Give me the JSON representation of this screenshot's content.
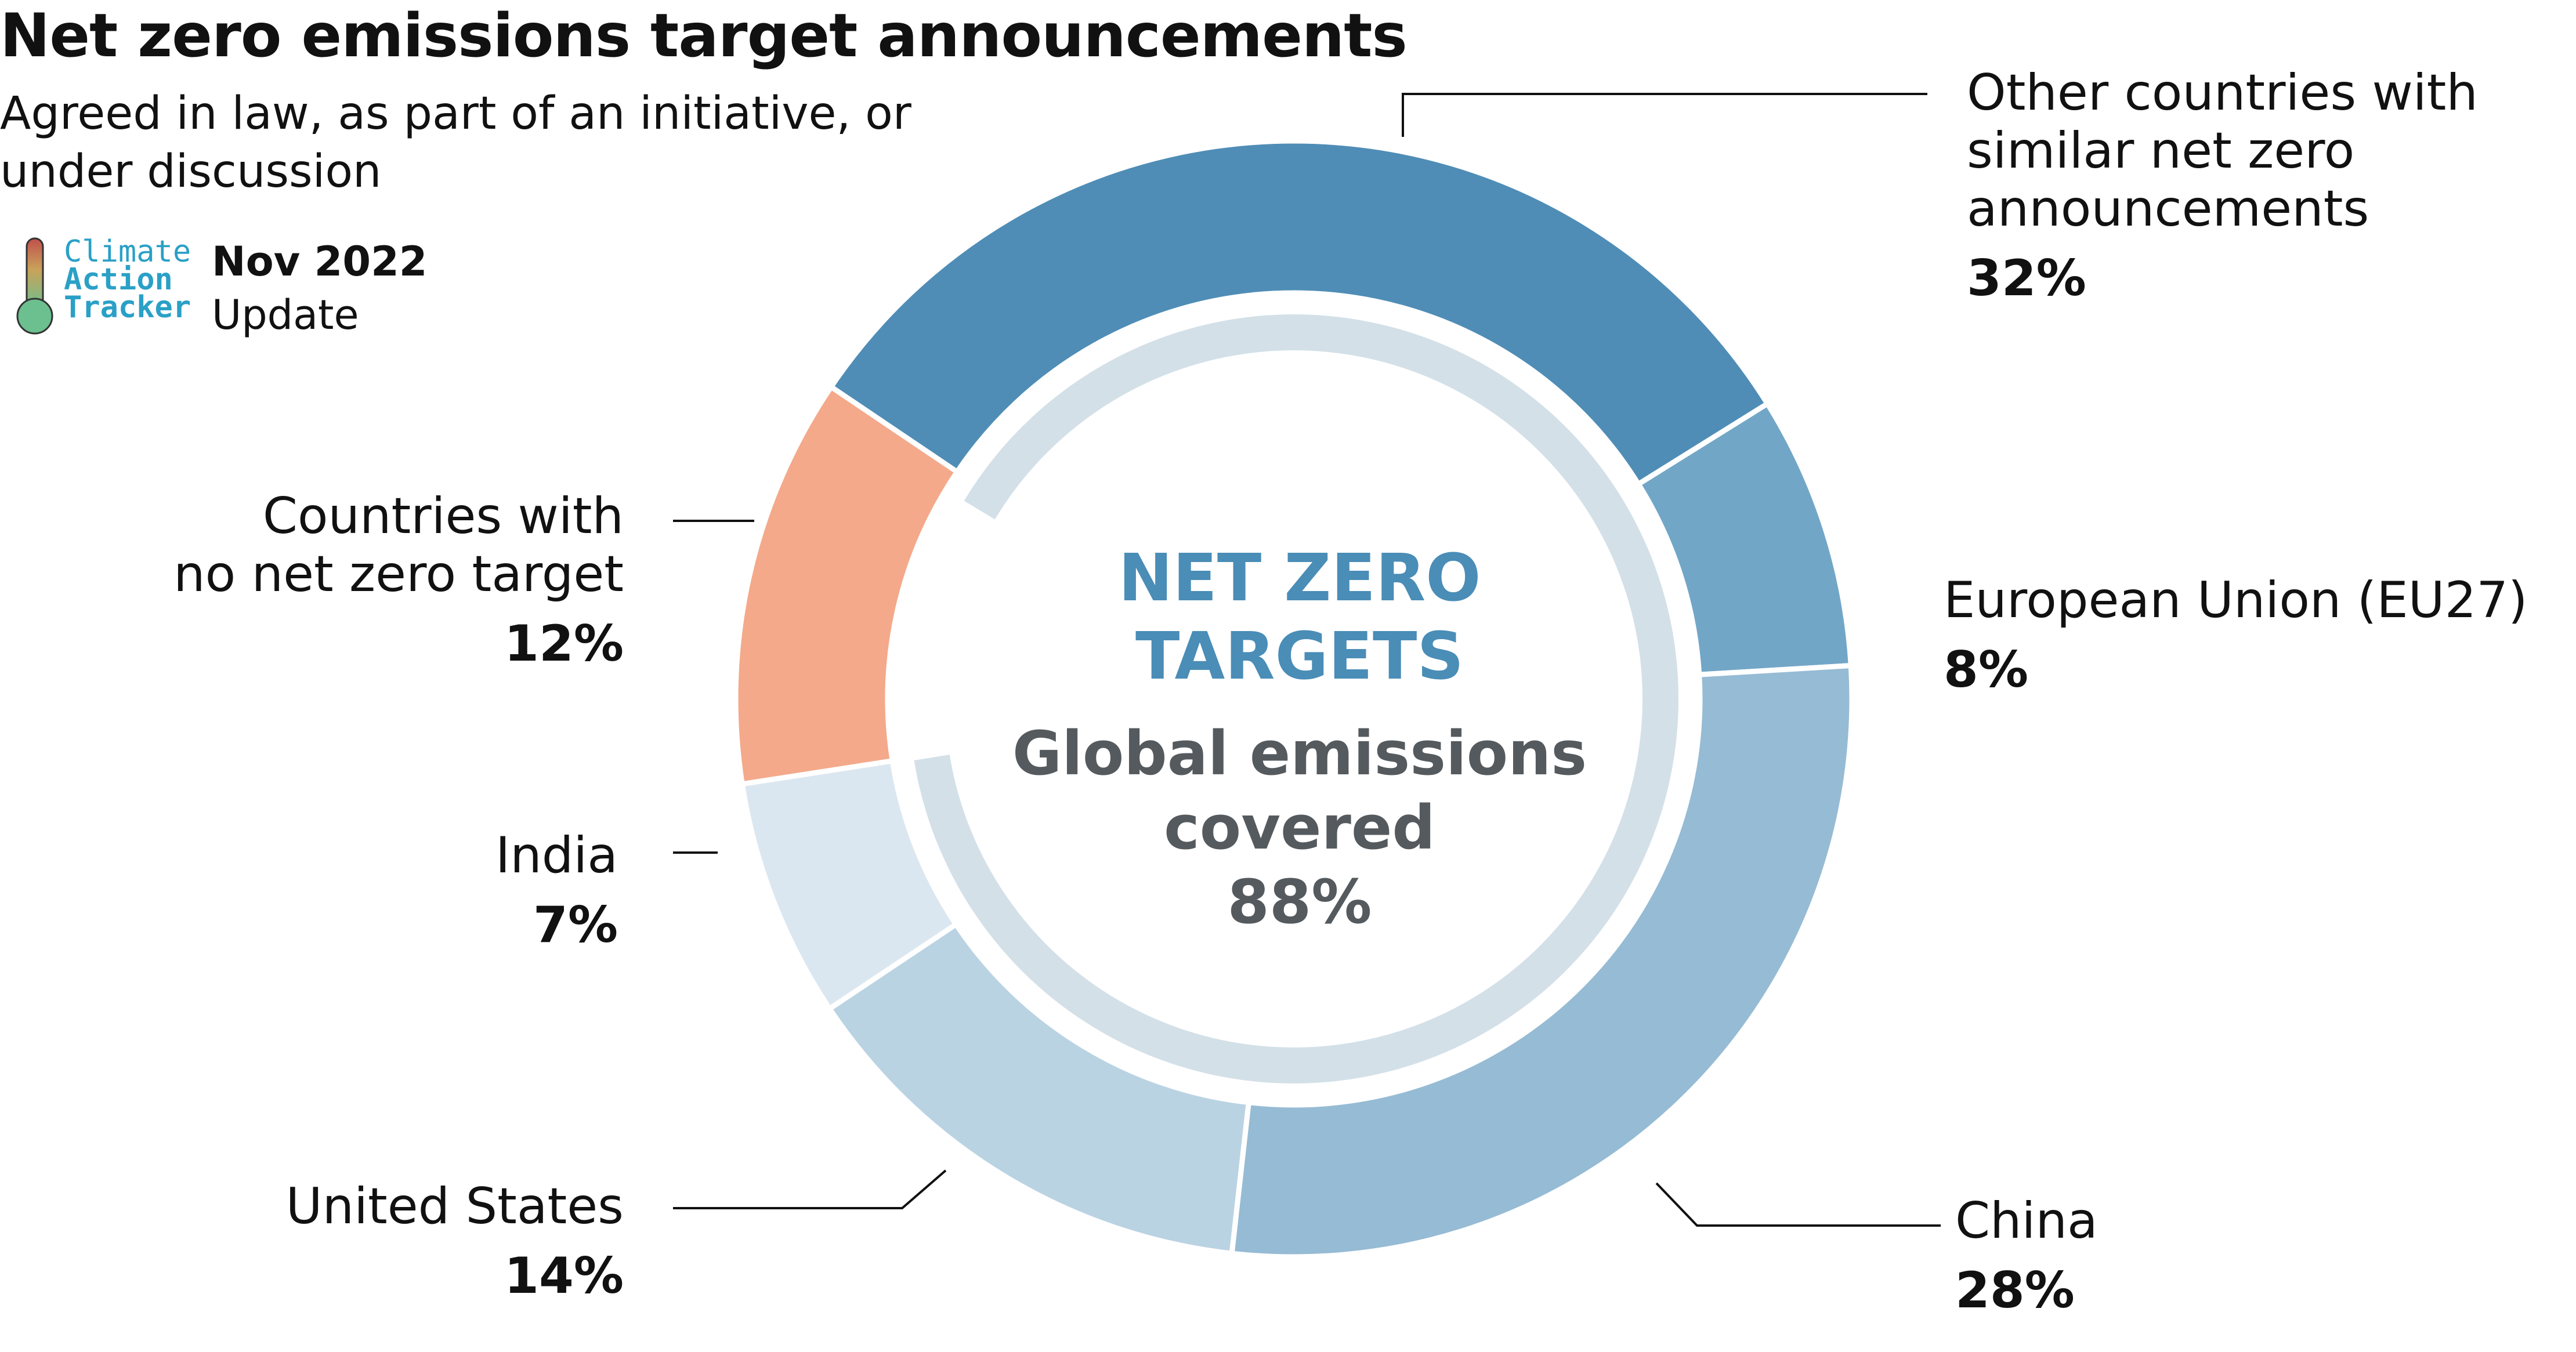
{
  "title": "Net zero emissions target announcements",
  "subtitle": "Agreed in law, as part of an initiative, or under discussion",
  "logo": {
    "line1": "Climate",
    "line2": "Action",
    "line3": "Tracker"
  },
  "date": {
    "month": "Nov 2022",
    "label": "Update"
  },
  "center": {
    "title_line1": "NET ZERO",
    "title_line2": "TARGETS",
    "sub_line1": "Global emissions",
    "sub_line2": "covered",
    "value": "88%"
  },
  "colors": {
    "other": "#4f8db6",
    "eu": "#72a6c7",
    "china": "#96bbd4",
    "us": "#bad3e3",
    "india": "#dbe7f0",
    "no_target": "#f4a98a",
    "inner_ring": "#d3e0e8",
    "center_title": "#4a8db7",
    "center_text": "#555a5e"
  },
  "chart_data": {
    "type": "donut",
    "title": "Net zero emissions target announcements",
    "subtitle": "Agreed in law, as part of an initiative, or under discussion",
    "units": "% of global emissions",
    "slices": [
      {
        "label": "Other countries with similar net zero announcements",
        "value": 32,
        "display": "32%",
        "color": "#4f8db6"
      },
      {
        "label": "European Union (EU27)",
        "value": 8,
        "display": "8%",
        "color": "#72a6c7"
      },
      {
        "label": "China",
        "value": 28,
        "display": "28%",
        "color": "#96bbd4"
      },
      {
        "label": "United States",
        "value": 14,
        "display": "14%",
        "color": "#bad3e3"
      },
      {
        "label": "India",
        "value": 7,
        "display": "7%",
        "color": "#dbe7f0"
      },
      {
        "label": "Countries with no net zero target",
        "value": 12,
        "display": "12%",
        "color": "#f4a98a"
      }
    ],
    "inner_ring": {
      "label": "Global emissions covered",
      "value": 88,
      "display": "88%"
    }
  },
  "labels": {
    "other": {
      "line1": "Other countries with",
      "line2": "similar net zero",
      "line3": "announcements",
      "pct": "32%"
    },
    "eu": {
      "line1": "European Union (EU27)",
      "pct": "8%"
    },
    "china": {
      "line1": "China",
      "pct": "28%"
    },
    "us": {
      "line1": "United States",
      "pct": "14%"
    },
    "india": {
      "line1": "India",
      "pct": "7%"
    },
    "no_target": {
      "line1": "Countries with",
      "line2": "no net zero target",
      "pct": "12%"
    }
  }
}
